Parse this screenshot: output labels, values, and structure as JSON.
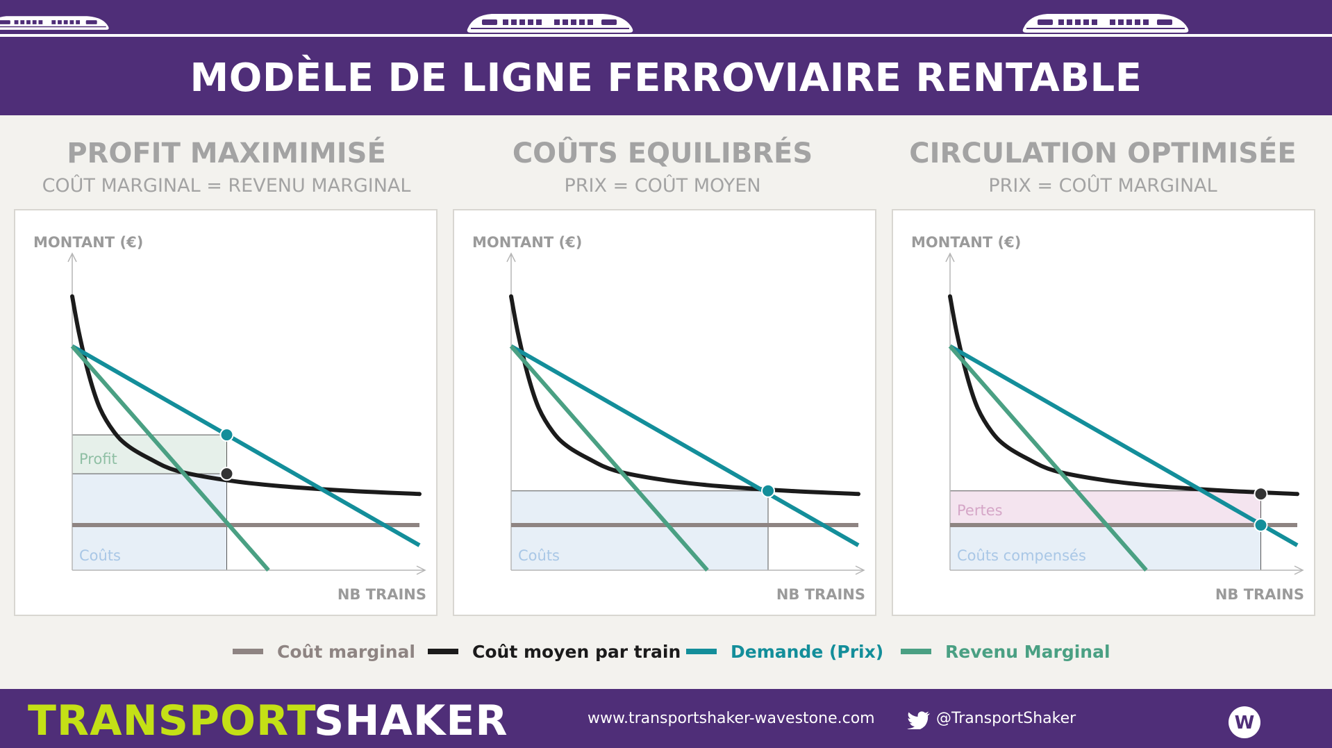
{
  "header": {
    "title": "MODÈLE DE LIGNE FERROVIAIRE RENTABLE"
  },
  "panels": [
    {
      "title": "PROFIT MAXIMIMISÉ",
      "subtitle": "COÛT MARGINAL = REVENU MARGINAL",
      "ylabel": "MONTANT (€)",
      "xlabel": "NB TRAINS"
    },
    {
      "title": "COÛTS EQUILIBRÉS",
      "subtitle": "PRIX = COÛT MOYEN",
      "ylabel": "MONTANT (€)",
      "xlabel": "NB TRAINS"
    },
    {
      "title": "CIRCULATION OPTIMISÉE",
      "subtitle": "PRIX = COÛT MARGINAL",
      "ylabel": "MONTANT (€)",
      "xlabel": "NB TRAINS"
    }
  ],
  "legend": [
    {
      "label": "Coût marginal",
      "color": "#8e8482"
    },
    {
      "label": "Coût moyen par train",
      "color": "#1b1b1b"
    },
    {
      "label": "Demande (Prix)",
      "color": "#138e9a"
    },
    {
      "label": "Revenu Marginal",
      "color": "#4aa083"
    }
  ],
  "footer": {
    "brand_primary": "TRANSPORT",
    "brand_secondary": "SHAKER",
    "url": "www.transportshaker-wavestone.com",
    "twitter": "@TransportShaker",
    "logo_letter": "W"
  },
  "chart_data": [
    {
      "type": "line",
      "title": "PROFIT MAXIMIMISÉ",
      "subtitle": "COÛT MARGINAL = REVENU MARGINAL",
      "xlabel": "NB TRAINS",
      "ylabel": "MONTANT (€)",
      "xlim": [
        0,
        100
      ],
      "ylim": [
        0,
        100
      ],
      "axes": "arrows only, no ticks",
      "series": [
        {
          "name": "Coût marginal",
          "color": "#8e8482",
          "x": [
            0,
            100
          ],
          "y": [
            14.5,
            14.5
          ]
        },
        {
          "name": "Coût moyen par train",
          "color": "#1b1b1b",
          "x": [
            0,
            2,
            5,
            8,
            12,
            16,
            22,
            30,
            44,
            60,
            80,
            100
          ],
          "y": [
            88,
            76,
            62,
            52,
            44.5,
            40,
            36,
            32,
            29,
            27,
            25.5,
            24.5
          ]
        },
        {
          "name": "Demande (Prix)",
          "color": "#138e9a",
          "x": [
            0,
            100
          ],
          "y": [
            72,
            8
          ]
        },
        {
          "name": "Revenu Marginal",
          "color": "#4aa083",
          "x": [
            0,
            56.5
          ],
          "y": [
            72,
            0
          ]
        }
      ],
      "points": [
        {
          "series": "Demande (Prix)",
          "x": 44.5,
          "y": 43.5
        },
        {
          "series": "Coût moyen par train",
          "x": 44.5,
          "y": 31
        }
      ],
      "regions": [
        {
          "label": "Profit",
          "x": [
            0,
            44.5
          ],
          "y": [
            31,
            43.5
          ]
        },
        {
          "label": "Coûts",
          "x": [
            0,
            44.5
          ],
          "y": [
            0,
            31
          ]
        }
      ]
    },
    {
      "type": "line",
      "title": "COÛTS EQUILIBRÉS",
      "subtitle": "PRIX = COÛT MOYEN",
      "xlabel": "NB TRAINS",
      "ylabel": "MONTANT (€)",
      "xlim": [
        0,
        100
      ],
      "ylim": [
        0,
        100
      ],
      "axes": "arrows only, no ticks",
      "series": [
        {
          "name": "Coût marginal",
          "color": "#8e8482",
          "x": [
            0,
            100
          ],
          "y": [
            14.5,
            14.5
          ]
        },
        {
          "name": "Coût moyen par train",
          "color": "#1b1b1b",
          "x": [
            0,
            2,
            5,
            8,
            12,
            16,
            22,
            30,
            44,
            60,
            80,
            100
          ],
          "y": [
            88,
            76,
            62,
            52,
            44.5,
            40,
            36,
            32,
            29,
            27,
            25.5,
            24.5
          ]
        },
        {
          "name": "Demande (Prix)",
          "color": "#138e9a",
          "x": [
            0,
            100
          ],
          "y": [
            72,
            8
          ]
        },
        {
          "name": "Revenu Marginal",
          "color": "#4aa083",
          "x": [
            0,
            56.5
          ],
          "y": [
            72,
            0
          ]
        }
      ],
      "points": [
        {
          "series": "Demande (Prix)",
          "x": 74,
          "y": 25.5
        }
      ],
      "regions": [
        {
          "label": "Coûts",
          "x": [
            0,
            74
          ],
          "y": [
            0,
            25.5
          ]
        }
      ]
    },
    {
      "type": "line",
      "title": "CIRCULATION OPTIMISÉE",
      "subtitle": "PRIX = COÛT MARGINAL",
      "xlabel": "NB TRAINS",
      "ylabel": "MONTANT (€)",
      "xlim": [
        0,
        100
      ],
      "ylim": [
        0,
        100
      ],
      "axes": "arrows only, no ticks",
      "series": [
        {
          "name": "Coût marginal",
          "color": "#8e8482",
          "x": [
            0,
            100
          ],
          "y": [
            14.5,
            14.5
          ]
        },
        {
          "name": "Coût moyen par train",
          "color": "#1b1b1b",
          "x": [
            0,
            2,
            5,
            8,
            12,
            16,
            22,
            30,
            44,
            60,
            80,
            100
          ],
          "y": [
            88,
            76,
            62,
            52,
            44.5,
            40,
            36,
            32,
            29,
            27,
            25.5,
            24.5
          ]
        },
        {
          "name": "Demande (Prix)",
          "color": "#138e9a",
          "x": [
            0,
            100
          ],
          "y": [
            72,
            8
          ]
        },
        {
          "name": "Revenu Marginal",
          "color": "#4aa083",
          "x": [
            0,
            56.5
          ],
          "y": [
            72,
            0
          ]
        }
      ],
      "points": [
        {
          "series": "Coût moyen par train",
          "x": 89.5,
          "y": 24.5
        },
        {
          "series": "Demande (Prix)",
          "x": 89.5,
          "y": 14.5
        }
      ],
      "regions": [
        {
          "label": "Pertes",
          "x": [
            0,
            89.5
          ],
          "y": [
            14.5,
            25.5
          ]
        },
        {
          "label": "Coûts compensés",
          "x": [
            0,
            89.5
          ],
          "y": [
            0,
            14.5
          ]
        }
      ]
    }
  ]
}
